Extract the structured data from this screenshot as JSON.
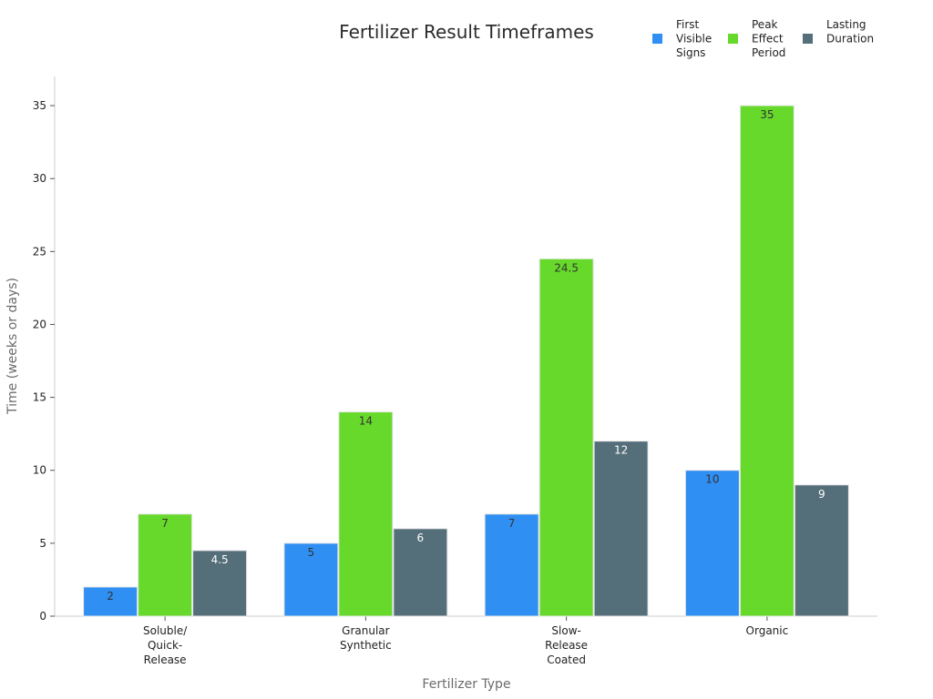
{
  "chart_data": {
    "type": "bar",
    "title": "Fertilizer Result Timeframes",
    "xlabel": "Fertilizer Type",
    "ylabel": "Time (weeks or days)",
    "categories": [
      [
        "Soluble/",
        "Quick-",
        "Release"
      ],
      [
        "Granular",
        "Synthetic"
      ],
      [
        "Slow-",
        "Release",
        "Coated"
      ],
      [
        "Organic"
      ]
    ],
    "series": [
      {
        "name": [
          "First",
          "Visible",
          "Signs"
        ],
        "color": "#2f8ff2",
        "label_color": "#333333",
        "values": [
          2,
          5,
          7,
          10
        ]
      },
      {
        "name": [
          "Peak",
          "Effect",
          "Period"
        ],
        "color": "#66d92b",
        "label_color": "#333333",
        "values": [
          7,
          14,
          24.5,
          35
        ]
      },
      {
        "name": [
          "Lasting",
          "Duration"
        ],
        "color": "#546e7a",
        "label_color": "#ffffff",
        "values": [
          4.5,
          6,
          12,
          9
        ]
      }
    ],
    "ylim": [
      0,
      37
    ],
    "yticks": [
      0,
      5,
      10,
      15,
      20,
      25,
      30,
      35
    ],
    "grid": false,
    "legend_position": "top-right"
  }
}
